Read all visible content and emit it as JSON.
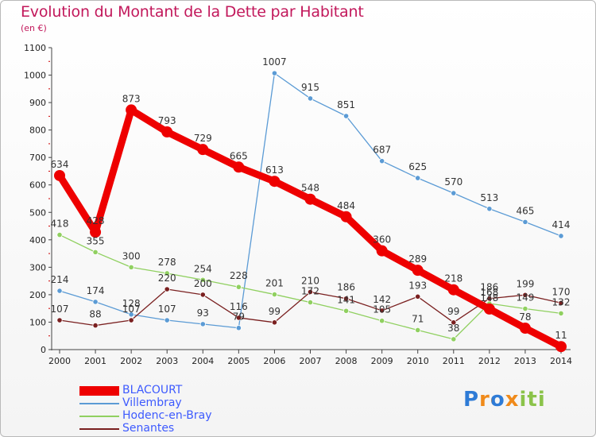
{
  "title": "Evolution du Montant de la Dette par Habitant",
  "subtitle": "(en €)",
  "brand": "Proxiti",
  "chart_data": {
    "type": "line",
    "x": [
      "2000",
      "2001",
      "2002",
      "2003",
      "2004",
      "2005",
      "2006",
      "2007",
      "2008",
      "2009",
      "2010",
      "2011",
      "2012",
      "2013",
      "2014"
    ],
    "ylim": [
      0,
      1100
    ],
    "yticks": [
      0,
      100,
      200,
      300,
      400,
      500,
      600,
      700,
      800,
      900,
      1000,
      1100
    ],
    "grid": false,
    "legend_position": "bottom-left",
    "series": [
      {
        "name": "BLACOURT",
        "color": "#ee0000",
        "values": [
          634,
          428,
          873,
          793,
          729,
          665,
          613,
          548,
          484,
          360,
          289,
          218,
          148,
          78,
          11
        ],
        "labels": [
          "634",
          "428",
          "873",
          "793",
          "729",
          "665",
          "613",
          "548",
          "484",
          "360",
          "289",
          "218",
          "148",
          "78",
          "11"
        ]
      },
      {
        "name": "Villembray",
        "color": "#5b9bd5",
        "values": [
          214,
          174,
          128,
          107,
          93,
          79,
          1007,
          915,
          851,
          687,
          625,
          570,
          513,
          465,
          414
        ],
        "labels": [
          "214",
          "174",
          "128",
          "107",
          "93",
          "79",
          "1007",
          "915",
          "851",
          "687",
          "625",
          "570",
          "513",
          "465",
          "414"
        ]
      },
      {
        "name": "Hodenc-en-Bray",
        "color": "#90d060",
        "values": [
          418,
          355,
          300,
          278,
          254,
          228,
          201,
          172,
          141,
          105,
          71,
          38,
          168,
          149,
          132
        ],
        "labels": [
          "418",
          "355",
          "300",
          "278",
          "254",
          "228",
          "201",
          "172",
          "141",
          "105",
          "71",
          "38",
          "168",
          "149",
          "132"
        ]
      },
      {
        "name": "Senantes",
        "color": "#7a2020",
        "values": [
          107,
          88,
          107,
          220,
          200,
          116,
          99,
          210,
          186,
          142,
          193,
          99,
          186,
          199,
          170
        ],
        "labels": [
          "107",
          "88",
          "107",
          "220",
          "200",
          "116",
          "99",
          "210",
          "186",
          "142",
          "193",
          "99",
          "186",
          "199",
          "170"
        ]
      }
    ]
  }
}
